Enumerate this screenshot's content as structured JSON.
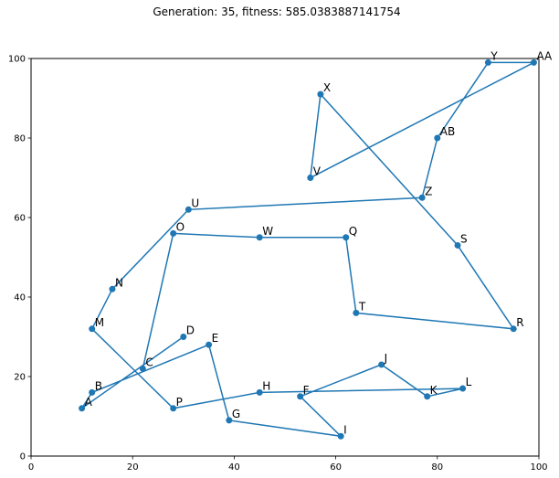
{
  "chart_data": {
    "type": "line",
    "title": "Generation: 35, fitness: 585.0383887141754",
    "xlabel": "",
    "ylabel": "",
    "xlim": [
      0,
      100
    ],
    "ylim": [
      0,
      100
    ],
    "x_ticks": [
      0,
      20,
      40,
      60,
      80,
      100
    ],
    "y_ticks": [
      0,
      20,
      40,
      60,
      80,
      100
    ],
    "grid": false,
    "line_color": "#1f77b4",
    "marker_color": "#1f77b4",
    "points": [
      {
        "label": "A",
        "x": 10,
        "y": 12
      },
      {
        "label": "B",
        "x": 12,
        "y": 16
      },
      {
        "label": "C",
        "x": 22,
        "y": 22
      },
      {
        "label": "D",
        "x": 30,
        "y": 30
      },
      {
        "label": "E",
        "x": 35,
        "y": 28
      },
      {
        "label": "F",
        "x": 53,
        "y": 15
      },
      {
        "label": "G",
        "x": 39,
        "y": 9
      },
      {
        "label": "H",
        "x": 45,
        "y": 16
      },
      {
        "label": "I",
        "x": 61,
        "y": 5
      },
      {
        "label": "J",
        "x": 69,
        "y": 23
      },
      {
        "label": "K",
        "x": 78,
        "y": 15
      },
      {
        "label": "L",
        "x": 85,
        "y": 17
      },
      {
        "label": "M",
        "x": 12,
        "y": 32
      },
      {
        "label": "N",
        "x": 16,
        "y": 42
      },
      {
        "label": "O",
        "x": 28,
        "y": 56
      },
      {
        "label": "P",
        "x": 28,
        "y": 12
      },
      {
        "label": "Q",
        "x": 62,
        "y": 55
      },
      {
        "label": "R",
        "x": 95,
        "y": 32
      },
      {
        "label": "S",
        "x": 84,
        "y": 53
      },
      {
        "label": "T",
        "x": 64,
        "y": 36
      },
      {
        "label": "U",
        "x": 31,
        "y": 62
      },
      {
        "label": "V",
        "x": 55,
        "y": 70
      },
      {
        "label": "W",
        "x": 45,
        "y": 55
      },
      {
        "label": "X",
        "x": 57,
        "y": 91
      },
      {
        "label": "Y",
        "x": 90,
        "y": 99
      },
      {
        "label": "Z",
        "x": 77,
        "y": 65
      },
      {
        "label": "AA",
        "x": 99,
        "y": 99
      },
      {
        "label": "AB",
        "x": 80,
        "y": 80
      }
    ],
    "tour": [
      "D",
      "A",
      "B",
      "E",
      "G",
      "I",
      "F",
      "J",
      "K",
      "L",
      "H",
      "P",
      "M",
      "N",
      "U",
      "Z",
      "AB",
      "Y",
      "AA",
      "V",
      "X",
      "S",
      "R",
      "T",
      "Q",
      "W",
      "O",
      "C"
    ]
  }
}
